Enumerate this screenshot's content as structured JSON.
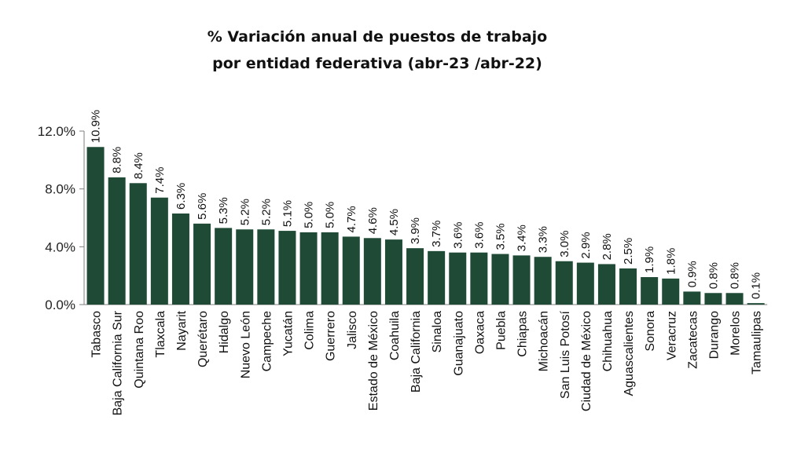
{
  "chart_data": {
    "type": "bar",
    "title": "% Variación anual de puestos de trabajo",
    "subtitle": "por entidad federativa (abr-23 /abr-22)",
    "xlabel": "",
    "ylabel": "",
    "ylim": [
      0,
      12
    ],
    "yticks": [
      "0.0%",
      "4.0%",
      "8.0%",
      "12.0%"
    ],
    "ytick_values": [
      0,
      4,
      8,
      12
    ],
    "grid": false,
    "bar_color": "#1f4a36",
    "categories": [
      "Tabasco",
      "Baja California Sur",
      "Quintana Roo",
      "Tlaxcala",
      "Nayarit",
      "Querétaro",
      "Hidalgo",
      "Nuevo León",
      "Campeche",
      "Yucatán",
      "Colima",
      "Guerrero",
      "Jalisco",
      "Estado de México",
      "Coahuila",
      "Baja California",
      "Sinaloa",
      "Guanajuato",
      "Oaxaca",
      "Puebla",
      "Chiapas",
      "Michoacán",
      "San Luis Potosí",
      "Ciudad de México",
      "Chihuahua",
      "Aguascalientes",
      "Sonora",
      "Veracruz",
      "Zacatecas",
      "Durango",
      "Morelos",
      "Tamaulipas"
    ],
    "values": [
      10.9,
      8.8,
      8.4,
      7.4,
      6.3,
      5.6,
      5.3,
      5.2,
      5.2,
      5.1,
      5.0,
      5.0,
      4.7,
      4.6,
      4.5,
      3.9,
      3.7,
      3.6,
      3.6,
      3.5,
      3.4,
      3.3,
      3.0,
      2.9,
      2.8,
      2.5,
      1.9,
      1.8,
      0.9,
      0.8,
      0.8,
      0.1
    ],
    "labels": [
      "10.9%",
      "8.8%",
      "8.4%",
      "7.4%",
      "6.3%",
      "5.6%",
      "5.3%",
      "5.2%",
      "5.2%",
      "5.1%",
      "5.0%",
      "5.0%",
      "4.7%",
      "4.6%",
      "4.5%",
      "3.9%",
      "3.7%",
      "3.6%",
      "3.6%",
      "3.5%",
      "3.4%",
      "3.3%",
      "3.0%",
      "2.9%",
      "2.8%",
      "2.5%",
      "1.9%",
      "1.8%",
      "0.9%",
      "0.8%",
      "0.8%",
      "0.1%"
    ]
  }
}
